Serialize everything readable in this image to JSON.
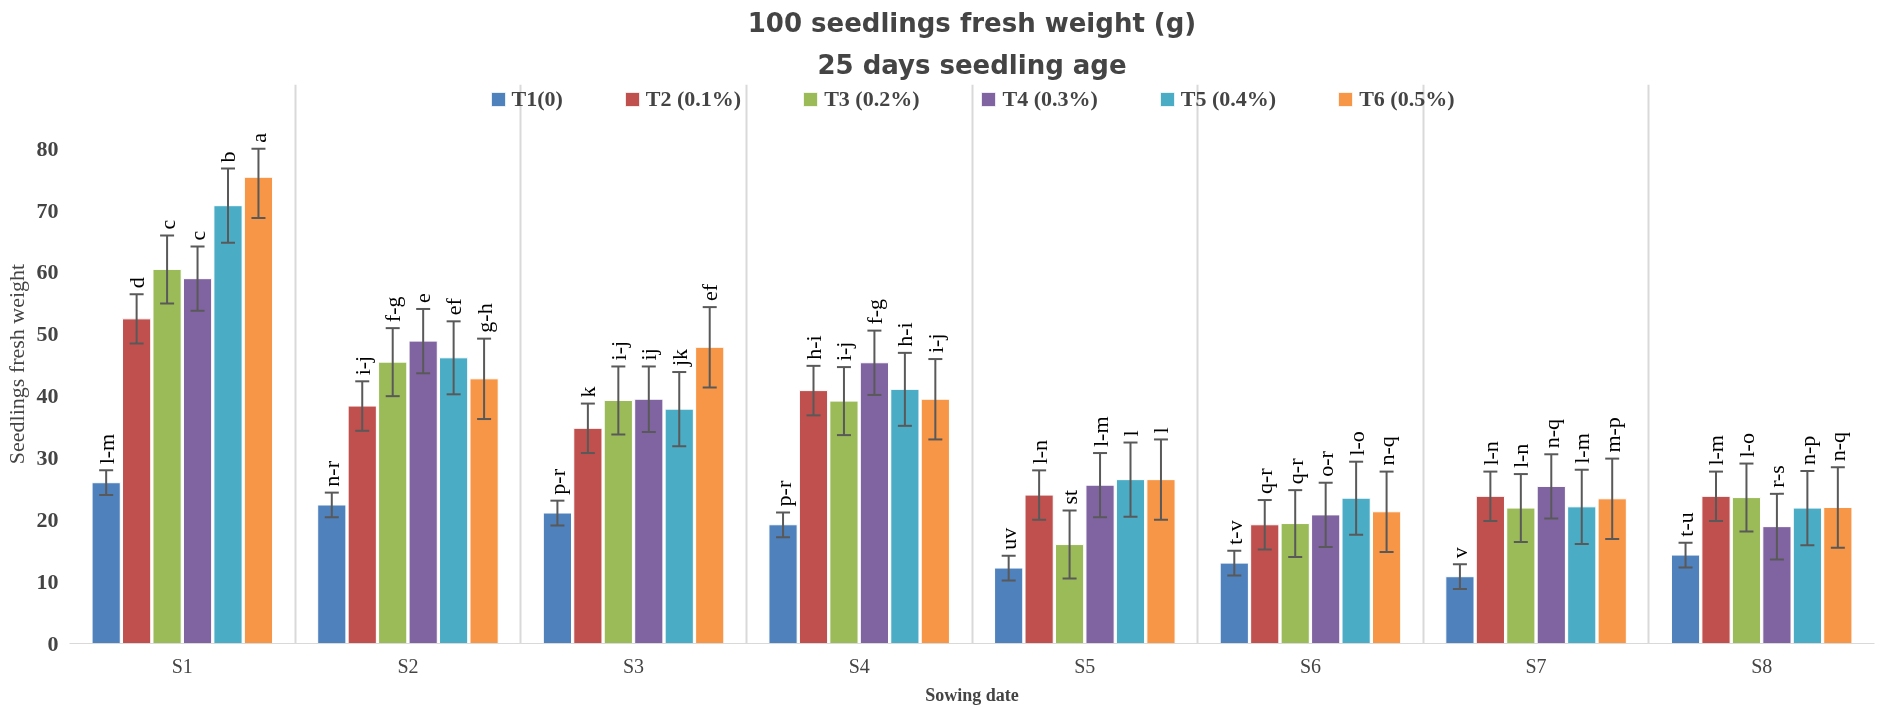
{
  "chart_data": {
    "type": "bar",
    "title": "100 seedlings fresh weight (g)",
    "subtitle": "25 days seedling age",
    "xlabel": "Sowing date",
    "ylabel": "Seedlings fresh weight",
    "categories": [
      "S1",
      "S2",
      "S3",
      "S4",
      "S5",
      "S6",
      "S7",
      "S8"
    ],
    "series": [
      {
        "name": "T1(0)",
        "color": "#4f81bd",
        "values": [
          26,
          22.4,
          21.1,
          19.2,
          12.2,
          13,
          10.8,
          14.3
        ],
        "errors": [
          2,
          2,
          2,
          2,
          2,
          2,
          2,
          2
        ],
        "value_labels": [
          "l-m",
          "n-r",
          "p-r",
          "p-r",
          "uv",
          "t-v",
          "v",
          "t-u"
        ]
      },
      {
        "name": "T2 (0.1%)",
        "color": "#c0504d",
        "values": [
          52.5,
          38.4,
          34.8,
          40.9,
          24,
          19.2,
          23.8,
          23.8
        ],
        "errors": [
          4,
          4,
          4,
          4,
          4,
          4,
          4,
          4
        ],
        "value_labels": [
          "d",
          "i-j",
          "k",
          "h-i",
          "l-n",
          "q-r",
          "l-n",
          "l-m"
        ]
      },
      {
        "name": "T3 (0.2%)",
        "color": "#9bbb59",
        "values": [
          60.5,
          45.5,
          39.3,
          39.2,
          16,
          19.4,
          21.9,
          23.6
        ],
        "errors": [
          5.5,
          5.5,
          5.5,
          5.5,
          5.5,
          5.4,
          5.5,
          5.5
        ],
        "value_labels": [
          "c",
          "f-g",
          "i-j",
          "i-j",
          "st",
          "q-r",
          "l-n",
          "l-o"
        ]
      },
      {
        "name": "T4 (0.3%)",
        "color": "#8064a2",
        "values": [
          59,
          48.9,
          39.5,
          45.4,
          25.6,
          20.8,
          25.4,
          18.9
        ],
        "errors": [
          5.2,
          5.2,
          5.3,
          5.2,
          5.2,
          5.2,
          5.2,
          5.3
        ],
        "value_labels": [
          "c",
          "e",
          "ij",
          "f-g",
          "l-m",
          "o-r",
          "n-q",
          "r-s"
        ]
      },
      {
        "name": "T5 (0.4%)",
        "color": "#4bacc6",
        "values": [
          70.8,
          46.2,
          37.9,
          41.1,
          26.5,
          23.5,
          22.1,
          21.9
        ],
        "errors": [
          6,
          5.9,
          6,
          5.9,
          6,
          5.9,
          6,
          6
        ],
        "value_labels": [
          "b",
          "ef",
          "jk",
          "h-i",
          "l",
          "l-o",
          "l-m",
          "n-p"
        ]
      },
      {
        "name": "T6 (0.5%)",
        "color": "#f79646",
        "values": [
          75.4,
          42.8,
          47.9,
          39.5,
          26.5,
          21.3,
          23.4,
          22
        ],
        "errors": [
          [
            68.8,
            80
          ],
          6.5,
          6.5,
          6.5,
          6.5,
          6.5,
          6.5,
          6.5
        ],
        "value_labels": [
          "a",
          "g-h",
          "ef",
          "i-j",
          "l",
          "n-q",
          "m-p",
          "n-q"
        ]
      }
    ],
    "ylim": [
      0,
      80
    ],
    "yticks": [
      0,
      10,
      20,
      30,
      40,
      50,
      60,
      70,
      80
    ],
    "grid": "x",
    "legend": "top"
  }
}
